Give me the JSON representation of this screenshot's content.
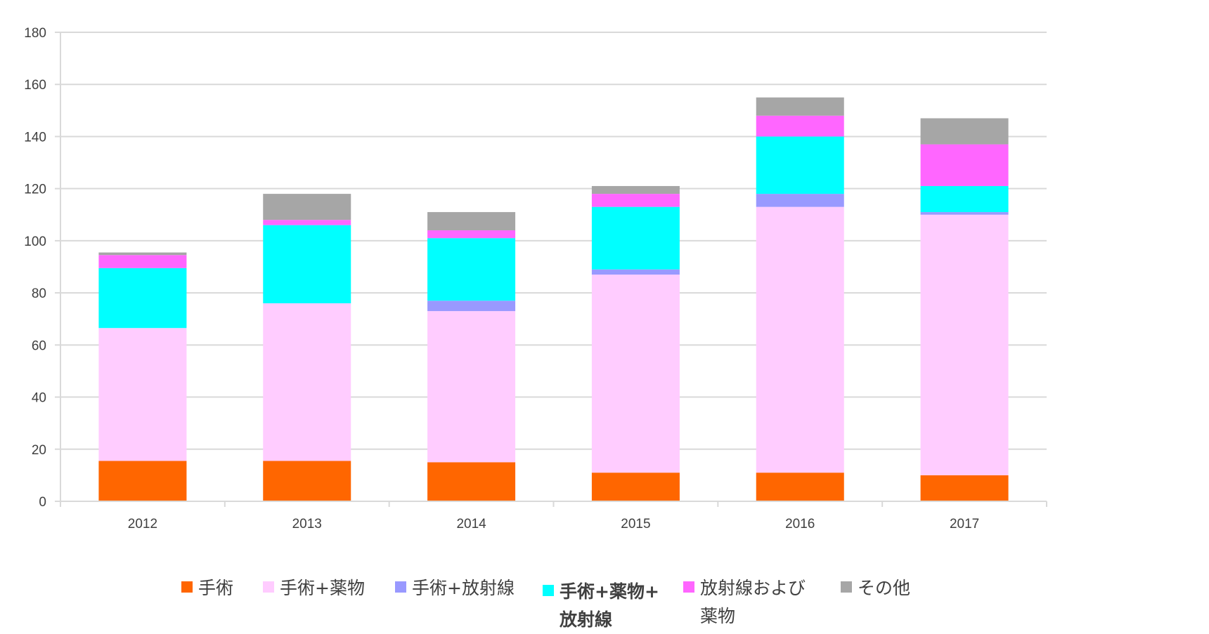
{
  "chart_data": {
    "type": "bar",
    "stacked": true,
    "categories": [
      "2012",
      "2013",
      "2014",
      "2015",
      "2016",
      "2017"
    ],
    "ylim": [
      0,
      180
    ],
    "yticks": [
      "0",
      "20",
      "40",
      "60",
      "80",
      "100",
      "120",
      "140",
      "160",
      "180"
    ],
    "grid": true,
    "legend_position": "bottom",
    "series": [
      {
        "name": "手術",
        "color": "#FF6600",
        "values": [
          15.5,
          15.5,
          15,
          11,
          11,
          10
        ]
      },
      {
        "name": "手術+薬物",
        "color": "#FFCCFF",
        "values": [
          51,
          60.5,
          58,
          76,
          102,
          100
        ]
      },
      {
        "name": "手術+放射線",
        "color": "#9999FF",
        "values": [
          0,
          0,
          4,
          2,
          5,
          1
        ]
      },
      {
        "name": "手術+薬物+\n放射線",
        "color": "#00FFFF",
        "values": [
          23,
          30,
          24,
          24,
          22,
          10
        ]
      },
      {
        "name": "放射線および\n薬物",
        "color": "#FF66FF",
        "values": [
          5,
          2,
          3,
          5,
          8,
          16
        ]
      },
      {
        "name": "その他",
        "color": "#A6A6A6",
        "values": [
          1,
          10,
          7,
          3,
          7,
          10
        ]
      }
    ]
  }
}
